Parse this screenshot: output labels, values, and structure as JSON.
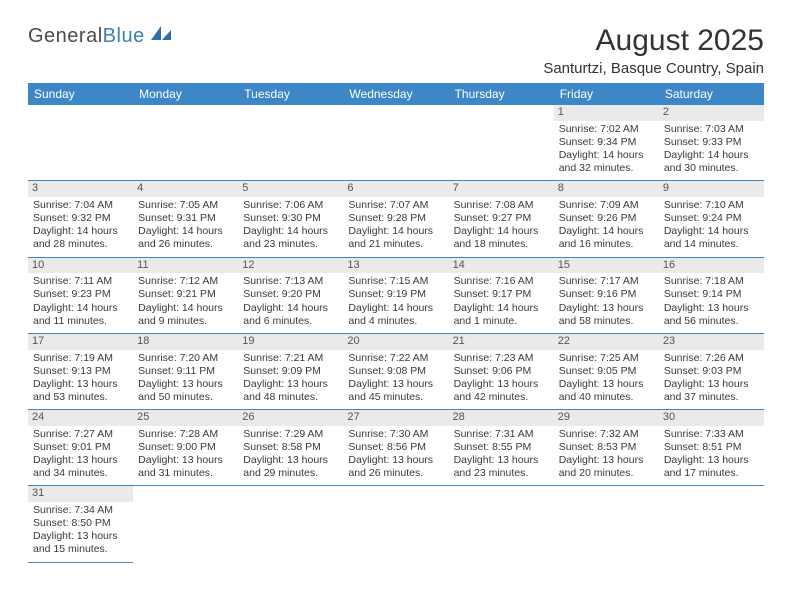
{
  "brand": {
    "part1": "General",
    "part2": "Blue"
  },
  "title": "August 2025",
  "location": "Santurtzi, Basque Country, Spain",
  "weekday_headers": [
    "Sunday",
    "Monday",
    "Tuesday",
    "Wednesday",
    "Thursday",
    "Friday",
    "Saturday"
  ],
  "colors": {
    "header_bg": "#3d87c7",
    "daynum_bg": "#eaeaea",
    "rule": "#3d87c7",
    "text": "#3a3a3a"
  },
  "weeks": [
    [
      null,
      null,
      null,
      null,
      null,
      {
        "n": "1",
        "sunrise": "7:02 AM",
        "sunset": "9:34 PM",
        "dl": "14 hours and 32 minutes."
      },
      {
        "n": "2",
        "sunrise": "7:03 AM",
        "sunset": "9:33 PM",
        "dl": "14 hours and 30 minutes."
      }
    ],
    [
      {
        "n": "3",
        "sunrise": "7:04 AM",
        "sunset": "9:32 PM",
        "dl": "14 hours and 28 minutes."
      },
      {
        "n": "4",
        "sunrise": "7:05 AM",
        "sunset": "9:31 PM",
        "dl": "14 hours and 26 minutes."
      },
      {
        "n": "5",
        "sunrise": "7:06 AM",
        "sunset": "9:30 PM",
        "dl": "14 hours and 23 minutes."
      },
      {
        "n": "6",
        "sunrise": "7:07 AM",
        "sunset": "9:28 PM",
        "dl": "14 hours and 21 minutes."
      },
      {
        "n": "7",
        "sunrise": "7:08 AM",
        "sunset": "9:27 PM",
        "dl": "14 hours and 18 minutes."
      },
      {
        "n": "8",
        "sunrise": "7:09 AM",
        "sunset": "9:26 PM",
        "dl": "14 hours and 16 minutes."
      },
      {
        "n": "9",
        "sunrise": "7:10 AM",
        "sunset": "9:24 PM",
        "dl": "14 hours and 14 minutes."
      }
    ],
    [
      {
        "n": "10",
        "sunrise": "7:11 AM",
        "sunset": "9:23 PM",
        "dl": "14 hours and 11 minutes."
      },
      {
        "n": "11",
        "sunrise": "7:12 AM",
        "sunset": "9:21 PM",
        "dl": "14 hours and 9 minutes."
      },
      {
        "n": "12",
        "sunrise": "7:13 AM",
        "sunset": "9:20 PM",
        "dl": "14 hours and 6 minutes."
      },
      {
        "n": "13",
        "sunrise": "7:15 AM",
        "sunset": "9:19 PM",
        "dl": "14 hours and 4 minutes."
      },
      {
        "n": "14",
        "sunrise": "7:16 AM",
        "sunset": "9:17 PM",
        "dl": "14 hours and 1 minute."
      },
      {
        "n": "15",
        "sunrise": "7:17 AM",
        "sunset": "9:16 PM",
        "dl": "13 hours and 58 minutes."
      },
      {
        "n": "16",
        "sunrise": "7:18 AM",
        "sunset": "9:14 PM",
        "dl": "13 hours and 56 minutes."
      }
    ],
    [
      {
        "n": "17",
        "sunrise": "7:19 AM",
        "sunset": "9:13 PM",
        "dl": "13 hours and 53 minutes."
      },
      {
        "n": "18",
        "sunrise": "7:20 AM",
        "sunset": "9:11 PM",
        "dl": "13 hours and 50 minutes."
      },
      {
        "n": "19",
        "sunrise": "7:21 AM",
        "sunset": "9:09 PM",
        "dl": "13 hours and 48 minutes."
      },
      {
        "n": "20",
        "sunrise": "7:22 AM",
        "sunset": "9:08 PM",
        "dl": "13 hours and 45 minutes."
      },
      {
        "n": "21",
        "sunrise": "7:23 AM",
        "sunset": "9:06 PM",
        "dl": "13 hours and 42 minutes."
      },
      {
        "n": "22",
        "sunrise": "7:25 AM",
        "sunset": "9:05 PM",
        "dl": "13 hours and 40 minutes."
      },
      {
        "n": "23",
        "sunrise": "7:26 AM",
        "sunset": "9:03 PM",
        "dl": "13 hours and 37 minutes."
      }
    ],
    [
      {
        "n": "24",
        "sunrise": "7:27 AM",
        "sunset": "9:01 PM",
        "dl": "13 hours and 34 minutes."
      },
      {
        "n": "25",
        "sunrise": "7:28 AM",
        "sunset": "9:00 PM",
        "dl": "13 hours and 31 minutes."
      },
      {
        "n": "26",
        "sunrise": "7:29 AM",
        "sunset": "8:58 PM",
        "dl": "13 hours and 29 minutes."
      },
      {
        "n": "27",
        "sunrise": "7:30 AM",
        "sunset": "8:56 PM",
        "dl": "13 hours and 26 minutes."
      },
      {
        "n": "28",
        "sunrise": "7:31 AM",
        "sunset": "8:55 PM",
        "dl": "13 hours and 23 minutes."
      },
      {
        "n": "29",
        "sunrise": "7:32 AM",
        "sunset": "8:53 PM",
        "dl": "13 hours and 20 minutes."
      },
      {
        "n": "30",
        "sunrise": "7:33 AM",
        "sunset": "8:51 PM",
        "dl": "13 hours and 17 minutes."
      }
    ],
    [
      {
        "n": "31",
        "sunrise": "7:34 AM",
        "sunset": "8:50 PM",
        "dl": "13 hours and 15 minutes."
      },
      null,
      null,
      null,
      null,
      null,
      null
    ]
  ],
  "labels": {
    "sunrise": "Sunrise: ",
    "sunset": "Sunset: ",
    "daylight": "Daylight: "
  }
}
